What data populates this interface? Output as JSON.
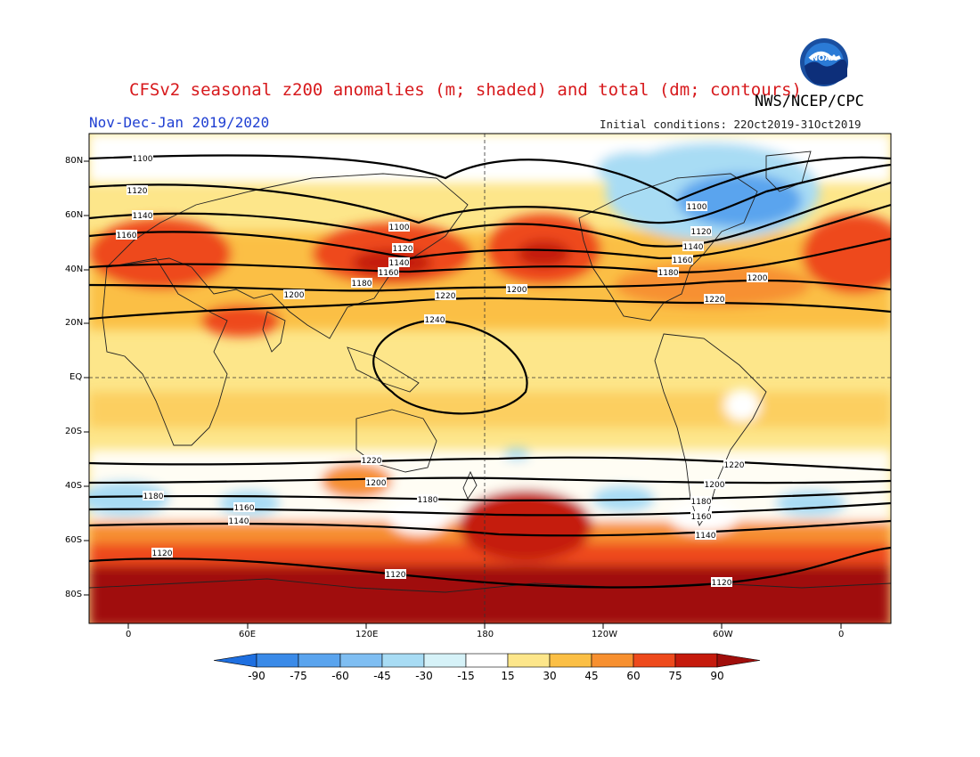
{
  "header": {
    "title": "CFSv2 seasonal z200 anomalies (m; shaded) and total (dm; contours)",
    "agency": "NWS/NCEP/CPC",
    "period": "Nov-Dec-Jan 2019/2020",
    "initial_conditions": "Initial conditions: 22Oct2019-31Oct2019",
    "logo_text": "NOAA"
  },
  "axes": {
    "lat_labels": [
      "80N",
      "60N",
      "40N",
      "20N",
      "EQ",
      "20S",
      "40S",
      "60S",
      "80S"
    ],
    "lon_labels": [
      "0",
      "60E",
      "120E",
      "180",
      "120W",
      "60W",
      "0"
    ]
  },
  "colorbar": {
    "levels": [
      "-90",
      "-75",
      "-60",
      "-45",
      "-30",
      "-15",
      "15",
      "30",
      "45",
      "60",
      "75",
      "90"
    ],
    "colors": [
      "#1e6fe0",
      "#3a8ae8",
      "#5aa4ee",
      "#7fbef2",
      "#a8dcf4",
      "#d6f2f8",
      "#ffffff",
      "#fde68a",
      "#fbbf45",
      "#f79030",
      "#ee4a1c",
      "#c51a0c",
      "#a00e0b"
    ]
  },
  "contours": {
    "labels": [
      "1100",
      "1120",
      "1140",
      "1160",
      "1180",
      "1200",
      "1220",
      "1240"
    ]
  }
}
